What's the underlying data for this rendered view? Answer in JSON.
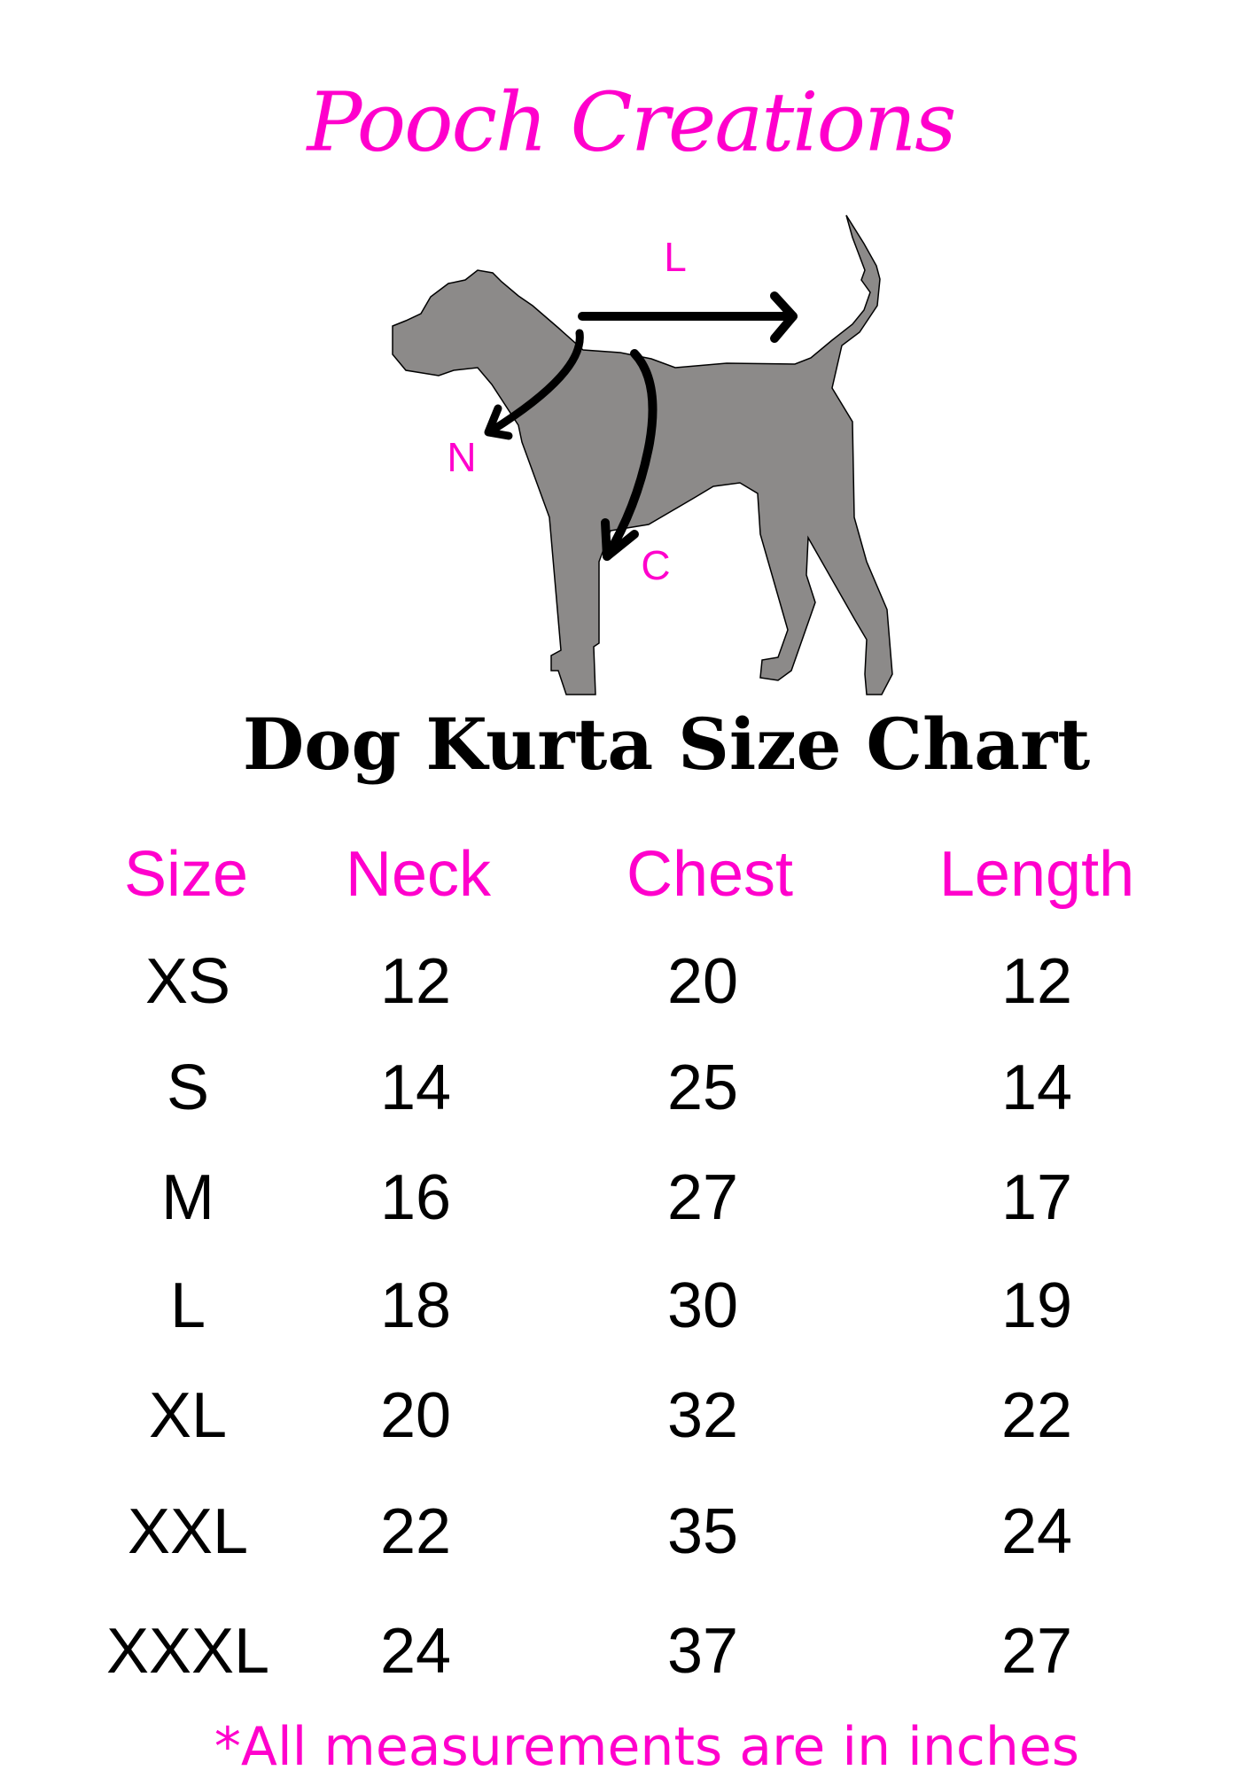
{
  "brand": "Pooch Creations",
  "diagram": {
    "length_label": "L",
    "neck_label": "N",
    "chest_label": "C",
    "silhouette_color": "#8c8a89",
    "accent_color": "#ff00cc"
  },
  "title": "Dog Kurta Size Chart",
  "table": {
    "headers": [
      "Size",
      "Neck",
      "Chest",
      "Length"
    ],
    "rows": [
      [
        "XS",
        "12",
        "20",
        "12"
      ],
      [
        "S",
        "14",
        "25",
        "14"
      ],
      [
        "M",
        "16",
        "27",
        "17"
      ],
      [
        "L",
        "18",
        "30",
        "19"
      ],
      [
        "XL",
        "20",
        "32",
        "22"
      ],
      [
        "XXL",
        "22",
        "35",
        "24"
      ],
      [
        "XXXL",
        "24",
        "37",
        "27"
      ]
    ]
  },
  "note": "*All measurements are in inches"
}
